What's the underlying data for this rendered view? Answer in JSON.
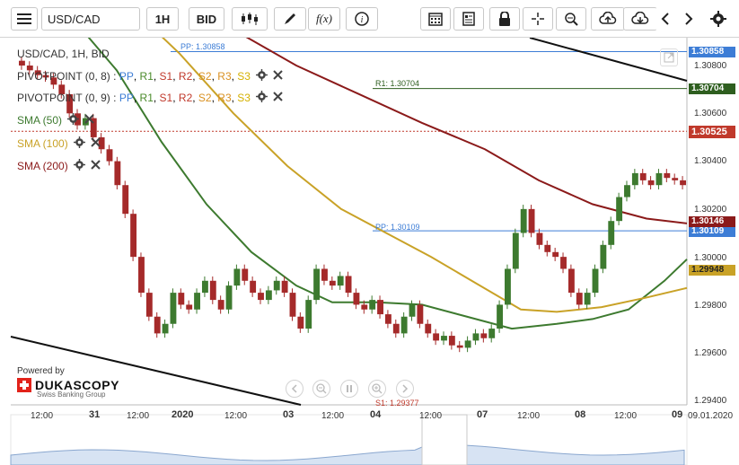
{
  "toolbar": {
    "menu_icon": "hamburger-icon",
    "symbol": "USD/CAD",
    "timeframe": "1H",
    "price_type": "BID",
    "icons": [
      "candlestick-icon",
      "draw-pen-icon",
      "function-icon",
      "info-icon",
      "calendar-icon",
      "report-icon",
      "lock-icon",
      "crosshair-icon",
      "zoom-icon",
      "cloud-upload-icon",
      "cloud-download-icon",
      "arrow-left-icon",
      "arrow-right-icon",
      "gear-icon"
    ],
    "function_label": "f(x)"
  },
  "chart": {
    "header": "USD/CAD, 1H, BID",
    "legend": [
      {
        "name": "PIVOTPOINT (0, 8)",
        "items": [
          "PP",
          "R1",
          "S1",
          "R2",
          "S2",
          "R3",
          "S3"
        ]
      },
      {
        "name": "PIVOTPOINT (0, 9)",
        "items": [
          "PP",
          "R1",
          "S1",
          "R2",
          "S2",
          "R3",
          "S3"
        ]
      },
      {
        "name": "SMA (50)",
        "color": "#3d7a2f"
      },
      {
        "name": "SMA (100)",
        "color": "#c9a227"
      },
      {
        "name": "SMA (200)",
        "color": "#8b1a1a"
      }
    ],
    "legend_separator": ":",
    "pivot_labels": {
      "pp_top": "PP: 1.30858",
      "r1": "R1: 1.30704",
      "pp_mid": "PP: 1.30109",
      "s1": "S1: 1.29377"
    },
    "price_tags": [
      {
        "value": "1.30858",
        "color": "#3d7dd6"
      },
      {
        "value": "1.30704",
        "color": "#2e5e1f"
      },
      {
        "value": "1.30525",
        "color": "#c0392b"
      },
      {
        "value": "1.30146",
        "color": "#8b1a1a"
      },
      {
        "value": "1.30109",
        "color": "#3d7dd6"
      },
      {
        "value": "1.29948",
        "color": "#c9a227"
      }
    ],
    "y_axis": [
      "1.30800",
      "1.30600",
      "1.30400",
      "1.30200",
      "1.30000",
      "1.29800",
      "1.29600",
      "1.29400"
    ],
    "x_axis": [
      {
        "label": "12:00",
        "bold": false
      },
      {
        "label": "31",
        "bold": true
      },
      {
        "label": "12:00",
        "bold": false
      },
      {
        "label": "2020",
        "bold": true
      },
      {
        "label": "12:00",
        "bold": false
      },
      {
        "label": "03",
        "bold": true
      },
      {
        "label": "12:00",
        "bold": false
      },
      {
        "label": "04",
        "bold": true
      },
      {
        "label": "12:00",
        "bold": false
      },
      {
        "label": "07",
        "bold": true
      },
      {
        "label": "12:00",
        "bold": false
      },
      {
        "label": "08",
        "bold": true
      },
      {
        "label": "12:00",
        "bold": false
      },
      {
        "label": "09",
        "bold": true
      }
    ],
    "date_label": "09.01.2020",
    "nav_icons": [
      "nav-back-icon",
      "zoom-out-icon",
      "pause-icon",
      "zoom-in-icon",
      "nav-forward-icon"
    ],
    "logo": {
      "powered": "Powered by",
      "brand": "DUKASCOPY",
      "tagline": "Swiss Banking Group"
    },
    "colors": {
      "up": "#3d7a2f",
      "down": "#a52a2a",
      "sma50": "#3d7a2f",
      "sma100": "#c9a227",
      "sma200": "#8b1a1a",
      "pivot_blue": "#3d7dd6",
      "r1_green": "#2e5e1f",
      "current_red": "#c0392b"
    }
  }
}
